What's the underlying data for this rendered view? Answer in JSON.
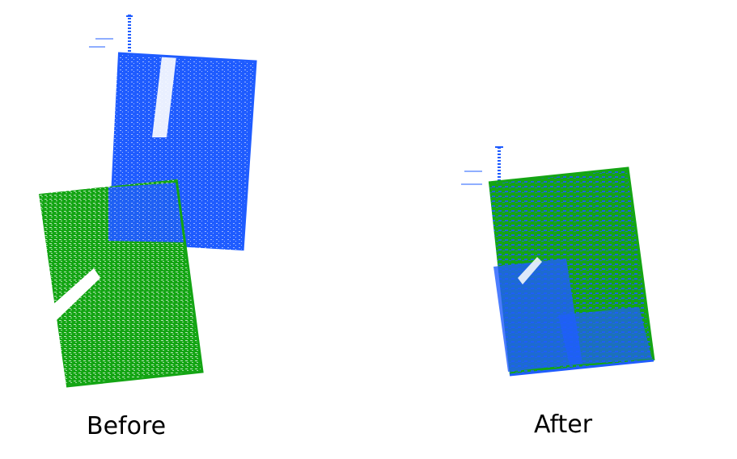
{
  "panels": {
    "before": {
      "caption": "Before"
    },
    "after": {
      "caption": "After"
    }
  },
  "colors": {
    "scan_a": "#1f5cff",
    "scan_b": "#14a514",
    "background": "#ffffff",
    "text": "#000000"
  }
}
